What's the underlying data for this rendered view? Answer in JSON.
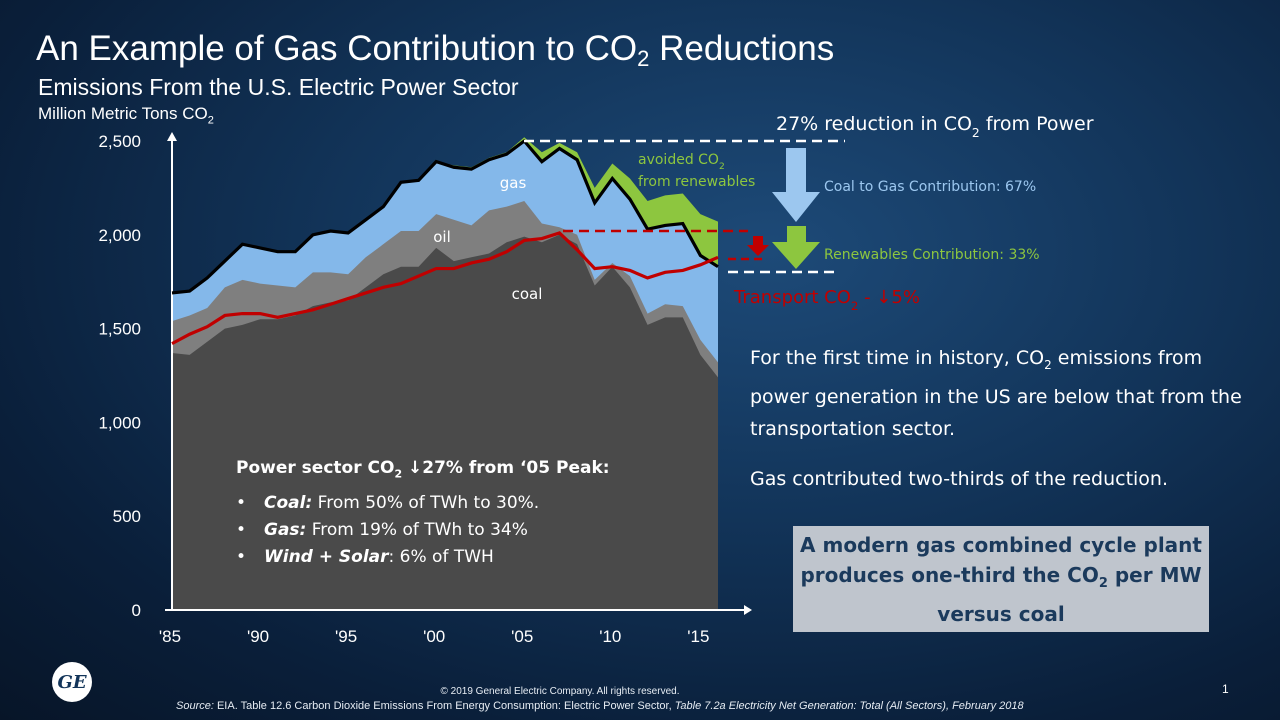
{
  "title": {
    "main": "An Example of Gas Contribution to CO",
    "sub": "2",
    "tail": " Reductions"
  },
  "subtitle": "Emissions From the U.S. Electric Power Sector",
  "units": {
    "text": "Million Metric Tons CO",
    "sub": "2"
  },
  "chart_data": {
    "type": "area",
    "x": [
      1985,
      1986,
      1987,
      1988,
      1989,
      1990,
      1991,
      1992,
      1993,
      1994,
      1995,
      1996,
      1997,
      1998,
      1999,
      2000,
      2001,
      2002,
      2003,
      2004,
      2005,
      2006,
      2007,
      2008,
      2009,
      2010,
      2011,
      2012,
      2013,
      2014,
      2015,
      2016
    ],
    "xticks": [
      "'85",
      "'90",
      "'95",
      "'00",
      "'05",
      "'10",
      "'15"
    ],
    "xtick_values": [
      1985,
      1990,
      1995,
      2000,
      2005,
      2010,
      2015
    ],
    "yticks": [
      "0",
      "500",
      "1,000",
      "1,500",
      "2,000",
      "2,500"
    ],
    "ytick_values": [
      0,
      500,
      1000,
      1500,
      2000,
      2500
    ],
    "ylim": [
      0,
      2500
    ],
    "xlim": [
      1985,
      2016
    ],
    "series": [
      {
        "name": "coal",
        "color": "#4a4a4a",
        "values": [
          1370,
          1360,
          1430,
          1500,
          1520,
          1550,
          1550,
          1570,
          1620,
          1640,
          1650,
          1720,
          1790,
          1830,
          1830,
          1930,
          1860,
          1880,
          1900,
          1960,
          1990,
          1960,
          2000,
          1950,
          1730,
          1830,
          1720,
          1520,
          1560,
          1560,
          1360,
          1240
        ]
      },
      {
        "name": "oil",
        "color": "#7f7f7f",
        "values": [
          1540,
          1570,
          1610,
          1720,
          1760,
          1740,
          1730,
          1720,
          1800,
          1800,
          1790,
          1880,
          1950,
          2020,
          2020,
          2110,
          2080,
          2050,
          2130,
          2150,
          2180,
          2060,
          2040,
          2000,
          1760,
          1850,
          1780,
          1580,
          1630,
          1620,
          1440,
          1320
        ]
      },
      {
        "name": "gas",
        "color": "#84b8ea",
        "values": [
          1690,
          1700,
          1770,
          1860,
          1950,
          1930,
          1910,
          1910,
          2000,
          2020,
          2010,
          2080,
          2150,
          2280,
          2290,
          2390,
          2360,
          2350,
          2400,
          2430,
          2500,
          2390,
          2460,
          2400,
          2170,
          2300,
          2190,
          2030,
          2050,
          2060,
          1890,
          1830
        ]
      },
      {
        "name": "avoided CO2 from renewables",
        "color": "#8dc63f",
        "values": [
          1690,
          1700,
          1770,
          1860,
          1950,
          1930,
          1910,
          1910,
          2000,
          2020,
          2010,
          2080,
          2150,
          2280,
          2290,
          2390,
          2370,
          2360,
          2410,
          2440,
          2520,
          2440,
          2490,
          2440,
          2250,
          2380,
          2300,
          2180,
          2210,
          2220,
          2110,
          2070
        ]
      }
    ],
    "transport_line": {
      "name": "Transport CO2",
      "color": "#c00000",
      "values": [
        1420,
        1470,
        1510,
        1570,
        1580,
        1580,
        1560,
        1580,
        1600,
        1630,
        1660,
        1690,
        1720,
        1740,
        1780,
        1820,
        1820,
        1850,
        1870,
        1910,
        1970,
        1980,
        2010,
        1920,
        1820,
        1830,
        1810,
        1770,
        1800,
        1810,
        1840,
        1880
      ]
    },
    "labels": {
      "gas": "gas",
      "oil": "oil",
      "coal": "coal"
    }
  },
  "annotations": {
    "reduction": {
      "text": "27% reduction in CO",
      "sub": "2",
      "tail": " from Power"
    },
    "avoided_1": "avoided CO",
    "avoided_sub": "2",
    "avoided_2": "from renewables",
    "coal_to_gas": "Coal to Gas Contribution: 67%",
    "renewables": "Renewables Contribution: 33%",
    "transport": "Transport CO",
    "transport_sub": "2",
    "transport_tail": " - ↓5%"
  },
  "note": {
    "head": "Power sector CO",
    "head_sub": "2",
    "head_tail": " ↓27% from ‘05 Peak:",
    "bullets": [
      {
        "key": "Coal:",
        "text": " From 50% of TWh to 30%."
      },
      {
        "key": "Gas:",
        "text": " From 19% of TWh to 34%"
      },
      {
        "key": "Wind + Solar",
        "text": ": 6% of TWH"
      }
    ]
  },
  "para1": {
    "a": "For the first time in history, CO",
    "sub": "2",
    "b": " emissions from power generation in the US are below that from the transportation sector."
  },
  "para2": "Gas contributed two-thirds of the reduction.",
  "callout": {
    "a": "A modern gas combined cycle plant produces one-third the CO",
    "sub": "2",
    "b": " per MW versus coal"
  },
  "logo": "GE",
  "copyright": "© 2019 General Electric Company. All rights reserved.",
  "page_number": "1",
  "source": {
    "a": "Source: ",
    "b": "EIA.  Table 12.6 Carbon Dioxide Emissions From Energy Consumption: Electric Power Sector, ",
    "c": "Table 7.2a Electricity Net Generation: Total (All Sectors), February 2018"
  }
}
